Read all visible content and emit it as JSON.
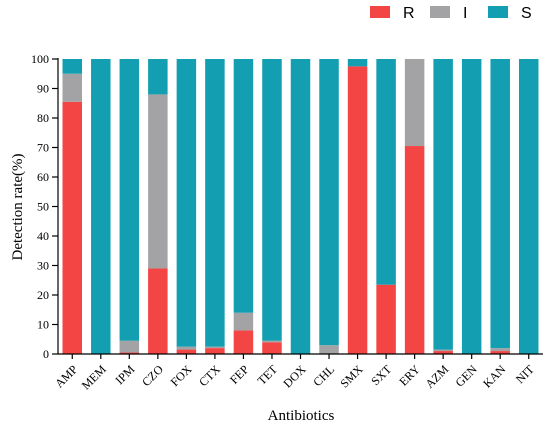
{
  "chart_data": {
    "type": "bar",
    "stacked": true,
    "title": "",
    "xlabel": "Antibiotics",
    "ylabel": "Detection rate(%)",
    "ylim": [
      0,
      100
    ],
    "yticks": [
      0,
      10,
      20,
      30,
      40,
      50,
      60,
      70,
      80,
      90,
      100
    ],
    "categories": [
      "AMP",
      "MEM",
      "IPM",
      "CZO",
      "FOX",
      "CTX",
      "FEP",
      "TET",
      "DOX",
      "CHL",
      "SMX",
      "SXT",
      "ERY",
      "AZM",
      "GEN",
      "KAN",
      "NIT"
    ],
    "series": [
      {
        "name": "R",
        "color": "#f44545",
        "values": [
          85.5,
          0,
          0.5,
          29,
          1.5,
          2,
          8,
          4,
          0,
          0,
          97.5,
          23.5,
          70.5,
          1,
          0,
          1,
          0
        ]
      },
      {
        "name": "I",
        "color": "#a3a3a6",
        "values": [
          9.5,
          0,
          4,
          59,
          1,
          0.5,
          6,
          0.5,
          0,
          3,
          0,
          0,
          29.5,
          0.5,
          0,
          1,
          0
        ]
      },
      {
        "name": "S",
        "color": "#139fb1",
        "values": [
          5,
          100,
          95.5,
          12,
          97.5,
          97.5,
          86,
          95.5,
          100,
          97,
          2.5,
          76.5,
          0,
          98.5,
          100,
          98,
          100
        ]
      }
    ],
    "legend_position": "top-right",
    "grid": false
  }
}
